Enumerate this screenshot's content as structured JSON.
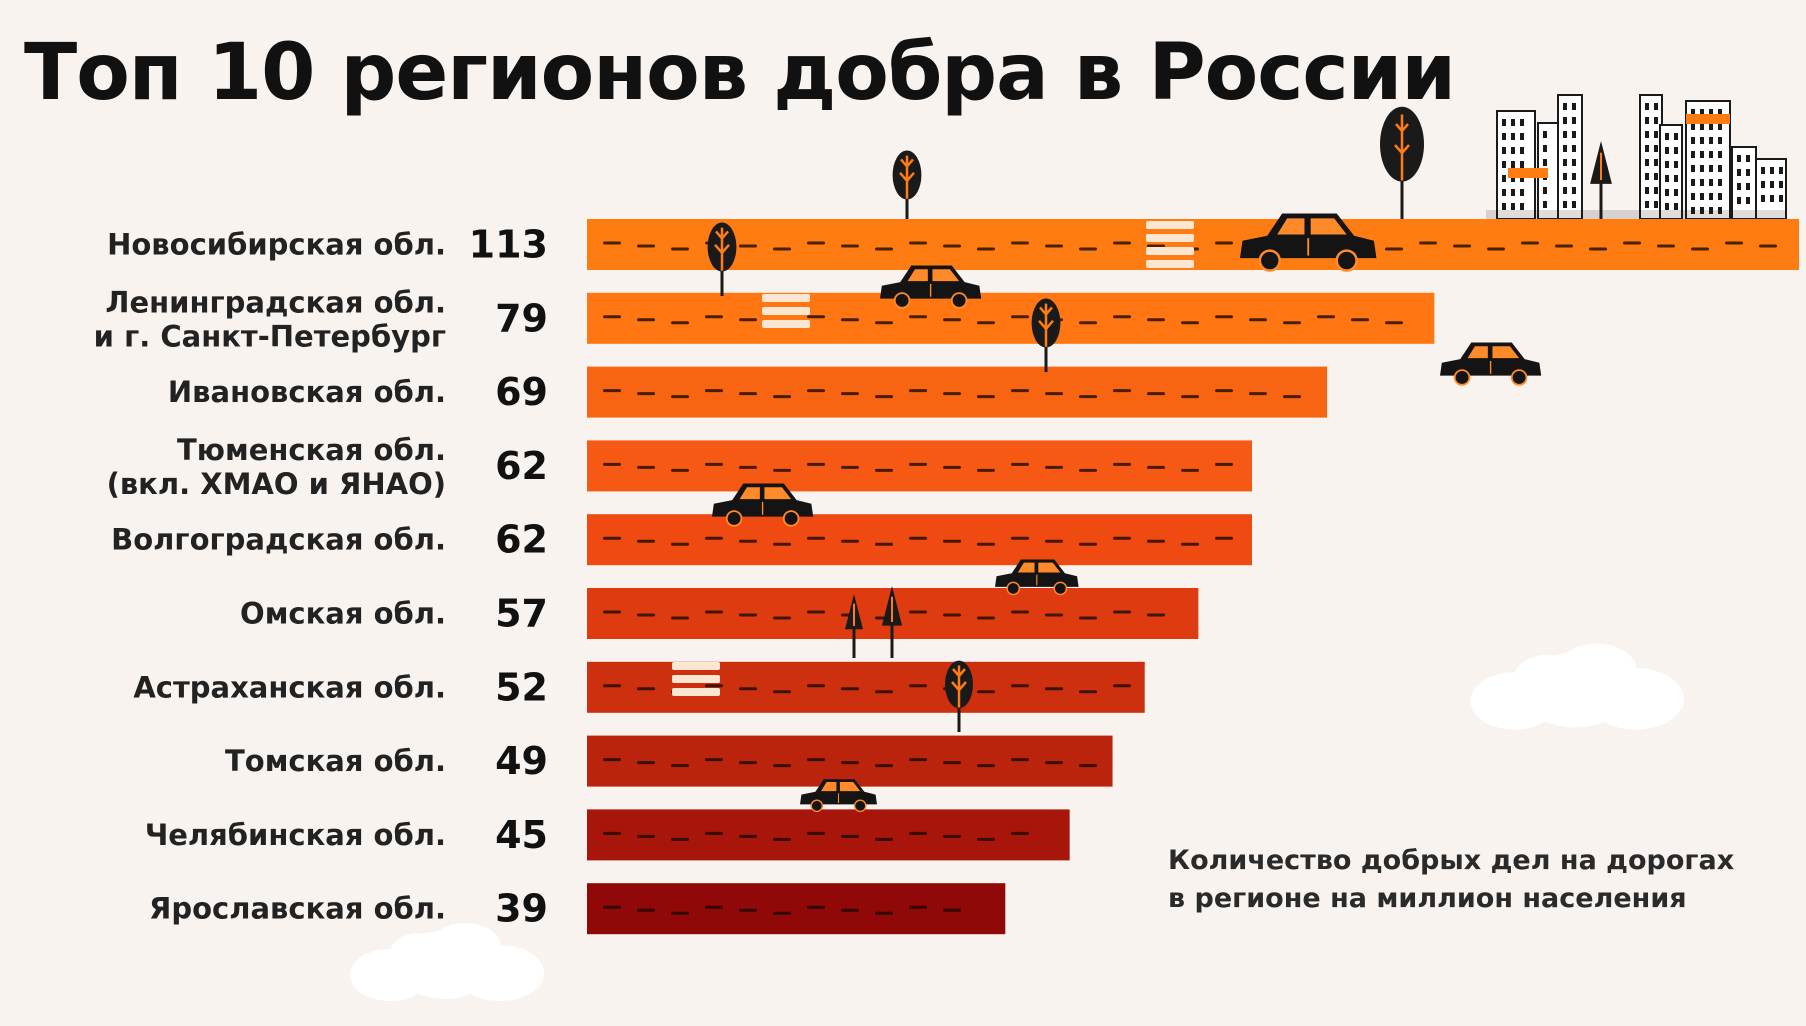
{
  "title": "Топ 10 регионов добра в России",
  "note": {
    "line1": "Количество добрых дел на дорогах",
    "line2": "в регионе на миллион населения"
  },
  "colors": {
    "background": "#f8f3ef",
    "bars": [
      "#ff7c12",
      "#ff7612",
      "#f86512",
      "#f65914",
      "#ee4a12",
      "#de3c10",
      "#cc300e",
      "#bb240c",
      "#a8150a",
      "#900808"
    ]
  },
  "chart_data": {
    "type": "bar",
    "orientation": "horizontal",
    "categories": [
      [
        "Новосибирская обл."
      ],
      [
        "Ленинградская обл.",
        "и г. Санкт-Петербург"
      ],
      [
        "Ивановская обл."
      ],
      [
        "Тюменская обл.",
        "(вкл. ХМАО и ЯНАО)"
      ],
      [
        "Волгоградская обл."
      ],
      [
        "Омская обл."
      ],
      [
        "Астраханская обл."
      ],
      [
        "Томская обл."
      ],
      [
        "Челябинская обл."
      ],
      [
        "Ярославская обл."
      ]
    ],
    "values": [
      113,
      79,
      69,
      62,
      62,
      57,
      52,
      49,
      45,
      39
    ],
    "grid": false,
    "decorations": [
      "car-icon",
      "tree-icon",
      "crosswalk-icon",
      "city-skyline-icon",
      "cloud-icon"
    ]
  }
}
